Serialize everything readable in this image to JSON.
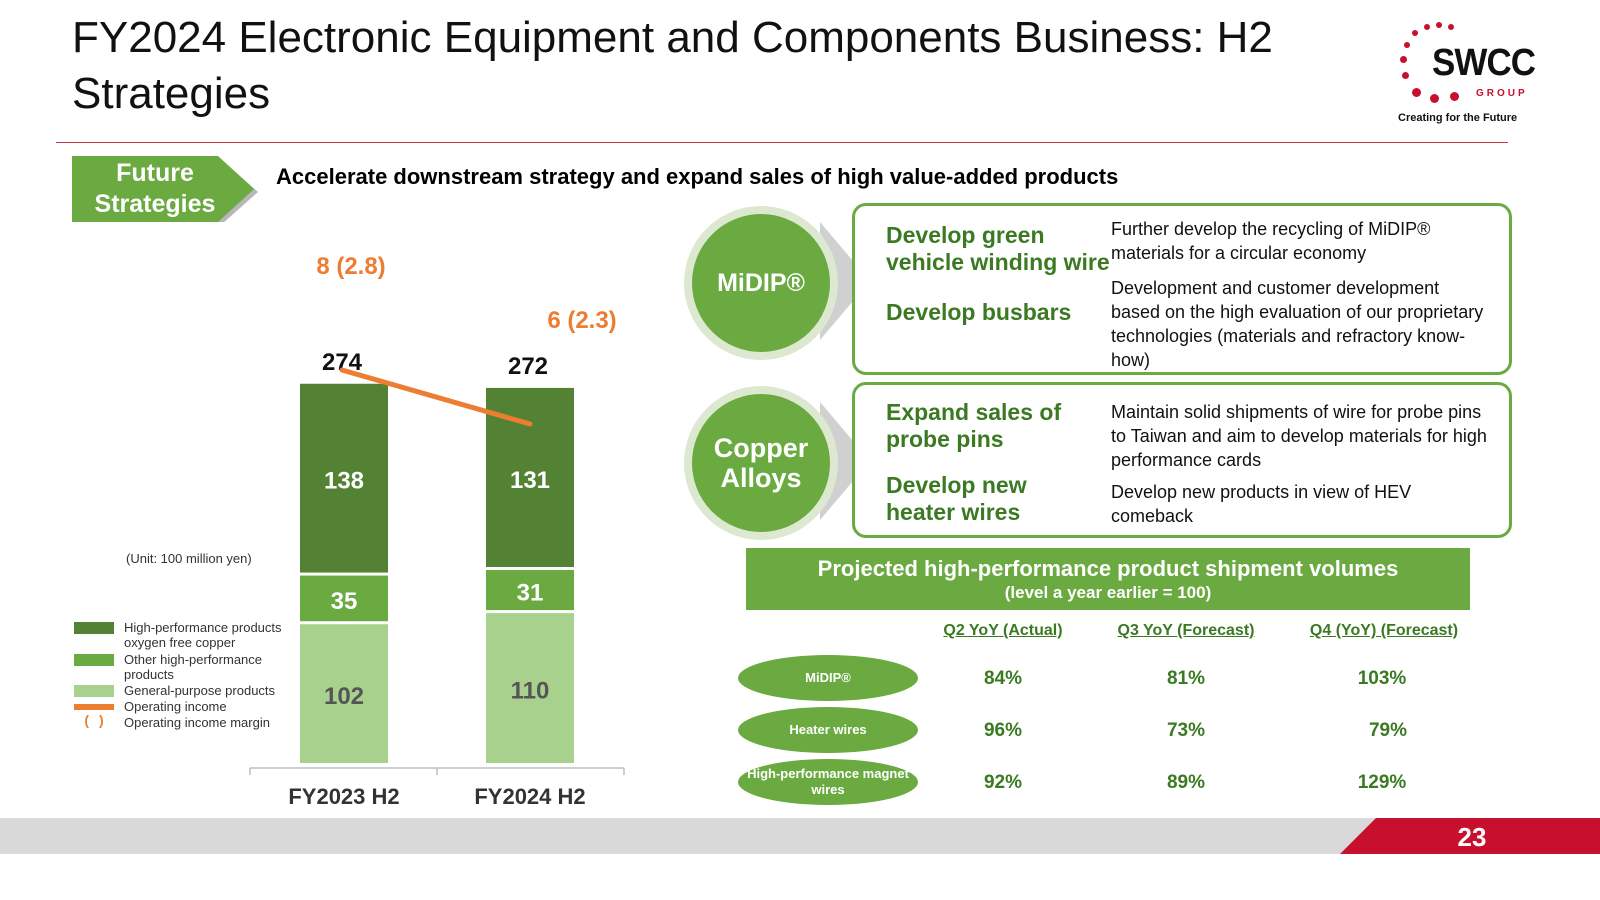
{
  "header": {
    "title": "FY2024 Electronic Equipment and Components Business: H2 Strategies",
    "logo": {
      "word": "SWCC",
      "group": "GROUP",
      "tagline": "Creating for the Future",
      "accent_color": "#c8102e"
    }
  },
  "future_tag": {
    "label": "Future Strategies"
  },
  "headline": "Accelerate downstream strategy and expand sales of high value-added products",
  "chart_data": {
    "type": "bar",
    "stacked": true,
    "categories": [
      "FY2023 H2",
      "FY2024 H2"
    ],
    "series": [
      {
        "name": "General-purpose products",
        "values": [
          102,
          110
        ],
        "color": "#a9d18e"
      },
      {
        "name": "Other high-performance products",
        "values": [
          35,
          31
        ],
        "color": "#6aaa40"
      },
      {
        "name": "High-performance products oxygen free copper",
        "values": [
          138,
          131
        ],
        "color": "#548235"
      }
    ],
    "totals": [
      274,
      272
    ],
    "operating_income": {
      "name": "Operating income",
      "values": [
        8,
        6
      ],
      "color": "#ed7d31"
    },
    "operating_income_margin": {
      "name": "Operating income margin",
      "values": [
        2.8,
        2.3
      ]
    },
    "operating_labels": [
      "8 (2.8)",
      "6 (2.3)"
    ],
    "unit_note": "(Unit: 100 million yen)",
    "ylim": [
      0,
      300
    ]
  },
  "legend": [
    {
      "label": "High-performance products oxygen free copper",
      "color": "#548235",
      "kind": "box"
    },
    {
      "label": "Other high-performance products",
      "color": "#6aaa40",
      "kind": "box"
    },
    {
      "label": "General-purpose products",
      "color": "#a9d18e",
      "kind": "box"
    },
    {
      "label": "Operating income",
      "color": "#ed7d31",
      "kind": "line"
    },
    {
      "label": "Operating income margin",
      "symbol": "( )",
      "color": "#ed7d31",
      "kind": "paren"
    }
  ],
  "groups": [
    {
      "circle": "MiDIP®",
      "items": [
        {
          "head": "Develop green vehicle winding wire",
          "desc": "Further develop the recycling of MiDIP® materials for a circular economy"
        },
        {
          "head": "Develop busbars",
          "desc": "Development and customer development based on the high evaluation of our proprietary technologies (materials and refractory know-how)"
        }
      ]
    },
    {
      "circle": "Copper Alloys",
      "items": [
        {
          "head": "Expand sales of probe pins",
          "desc": "Maintain solid shipments of wire for probe pins to Taiwan and aim to develop materials for high performance cards"
        },
        {
          "head": "Develop new heater wires",
          "desc": "Develop new products in view of HEV comeback"
        }
      ]
    }
  ],
  "shipment_table": {
    "title": "Projected high-performance product shipment volumes",
    "subtitle": "(level a year earlier = 100)",
    "columns": [
      "Q2 YoY (Actual)",
      "Q3 YoY (Forecast)",
      "Q4 (YoY) (Forecast)"
    ],
    "rows": [
      {
        "label": "MiDIP®",
        "values": [
          "84%",
          "81%",
          "103%"
        ]
      },
      {
        "label": "Heater wires",
        "values": [
          "96%",
          "73%",
          "79%"
        ]
      },
      {
        "label": "High-performance magnet wires",
        "values": [
          "92%",
          "89%",
          "129%"
        ]
      }
    ]
  },
  "footer": {
    "page_number": "23"
  },
  "colors": {
    "green_dark": "#548235",
    "green": "#6aaa40",
    "green_light": "#a9d18e",
    "orange": "#ed7d31",
    "red": "#c8102e",
    "gray": "#d9d9d9"
  }
}
